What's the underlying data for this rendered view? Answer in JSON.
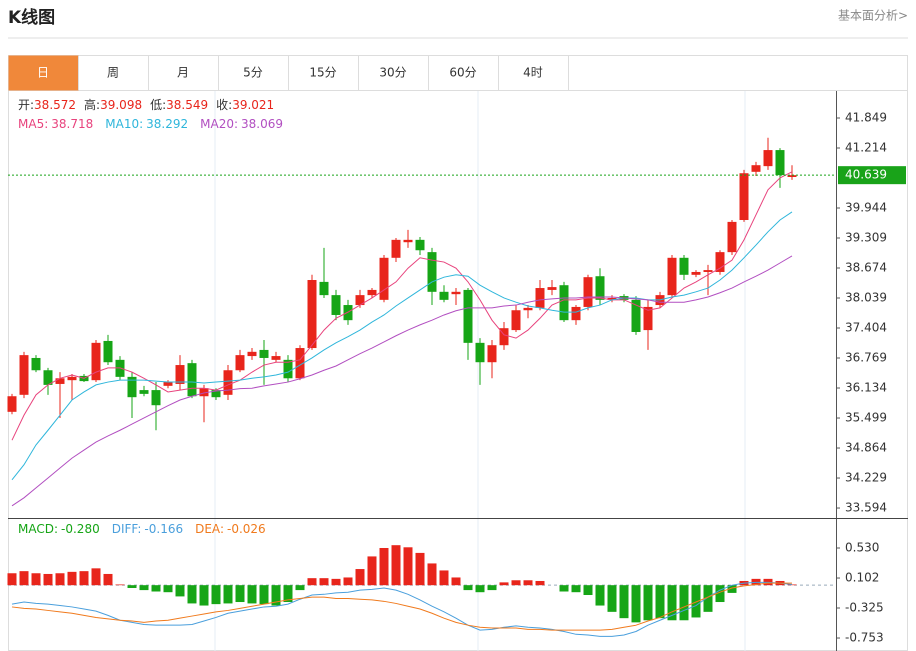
{
  "header": {
    "title": "K线图",
    "link": "基本面分析>"
  },
  "tabs": [
    "日",
    "周",
    "月",
    "5分",
    "15分",
    "30分",
    "60分",
    "4时"
  ],
  "active_tab": 0,
  "chart_data": [
    {
      "type": "candlestick",
      "ohlc_legend": [
        {
          "label": "开:",
          "value": 38.572
        },
        {
          "label": "高:",
          "value": 39.098
        },
        {
          "label": "低:",
          "value": 38.549
        },
        {
          "label": "收:",
          "value": 39.021
        }
      ],
      "ohlc_legend_color": "#e8251b",
      "legend_separator": ":",
      "legend_values": [
        38.718,
        38.292,
        38.069
      ],
      "up_color": "#e8251b",
      "down_color": "#16a516",
      "open": [
        35.63,
        35.99,
        36.77,
        36.51,
        36.22,
        36.3,
        36.39,
        36.3,
        37.13,
        36.73,
        36.37,
        36.09,
        36.09,
        36.18,
        36.22,
        36.66,
        35.96,
        36.09,
        35.99,
        36.51,
        36.81,
        36.94,
        36.73,
        36.73,
        36.34,
        36.98,
        38.38,
        38.1,
        37.89,
        37.89,
        38.1,
        38.0,
        38.89,
        39.22,
        39.27,
        39.01,
        38.17,
        38.12,
        38.21,
        37.09,
        36.68,
        37.04,
        37.36,
        37.78,
        37.83,
        38.21,
        38.31,
        37.57,
        37.85,
        38.5,
        38.0,
        38.08,
        38.0,
        37.36,
        37.89,
        38.1,
        38.89,
        38.53,
        38.59,
        38.59,
        39.01,
        39.69,
        40.71,
        40.83,
        41.17,
        40.6
      ],
      "high": [
        36.01,
        36.9,
        36.83,
        36.56,
        36.47,
        36.43,
        36.43,
        37.15,
        37.26,
        36.81,
        36.47,
        36.18,
        36.26,
        36.3,
        36.83,
        36.73,
        36.2,
        36.13,
        36.62,
        36.94,
        36.98,
        37.15,
        36.9,
        36.83,
        37.04,
        38.53,
        39.1,
        38.21,
        38.0,
        38.21,
        38.25,
        38.95,
        39.31,
        39.48,
        39.33,
        39.1,
        38.31,
        38.25,
        38.25,
        37.19,
        37.15,
        37.53,
        37.89,
        37.89,
        38.42,
        38.42,
        38.38,
        37.89,
        38.53,
        38.67,
        38.1,
        38.12,
        38.08,
        38.0,
        38.17,
        38.95,
        38.95,
        38.63,
        38.74,
        39.05,
        39.69,
        40.75,
        40.92,
        41.43,
        41.21,
        40.85
      ],
      "low": [
        35.58,
        35.92,
        36.47,
        35.99,
        35.5,
        35.88,
        36.26,
        36.26,
        36.62,
        36.3,
        35.5,
        35.96,
        35.24,
        36.13,
        36.09,
        35.92,
        35.41,
        35.88,
        35.88,
        36.47,
        36.73,
        36.2,
        36.68,
        36.26,
        36.3,
        36.94,
        38.04,
        37.57,
        37.47,
        37.83,
        38.04,
        37.95,
        38.8,
        39.1,
        38.95,
        37.89,
        37.95,
        37.89,
        36.73,
        36.2,
        36.34,
        36.94,
        37.32,
        37.61,
        37.78,
        38.1,
        37.53,
        37.47,
        37.78,
        37.89,
        37.95,
        37.95,
        37.26,
        36.94,
        37.83,
        38.04,
        38.42,
        38.48,
        38.1,
        38.53,
        38.95,
        39.65,
        40.62,
        40.75,
        40.37,
        40.54
      ],
      "close": [
        35.96,
        36.83,
        36.51,
        36.2,
        36.34,
        36.37,
        36.28,
        37.09,
        36.68,
        36.37,
        35.94,
        36.01,
        35.77,
        36.26,
        36.62,
        35.96,
        36.13,
        35.94,
        36.51,
        36.83,
        36.9,
        36.77,
        36.81,
        36.34,
        36.98,
        38.42,
        38.1,
        37.68,
        37.57,
        38.1,
        38.21,
        38.89,
        39.27,
        39.27,
        39.05,
        38.17,
        38.0,
        38.17,
        37.09,
        36.68,
        37.04,
        37.4,
        37.78,
        37.83,
        38.25,
        38.27,
        37.57,
        37.85,
        38.48,
        38.0,
        38.04,
        38.0,
        37.32,
        37.85,
        38.1,
        38.89,
        38.53,
        38.59,
        38.63,
        39.01,
        39.65,
        40.68,
        40.85,
        41.17,
        40.64,
        40.639
      ],
      "series": [
        {
          "name": "MA5",
          "color": "#e8437d",
          "values": [
            35.03,
            35.56,
            35.99,
            36.2,
            36.34,
            36.41,
            36.34,
            36.47,
            36.56,
            36.56,
            36.47,
            36.34,
            36.2,
            36.05,
            36.09,
            36.13,
            36.13,
            36.09,
            36.2,
            36.3,
            36.47,
            36.62,
            36.68,
            36.68,
            36.73,
            37.04,
            37.36,
            37.61,
            37.74,
            37.89,
            38.04,
            38.21,
            38.38,
            38.67,
            38.89,
            38.84,
            38.8,
            38.67,
            38.38,
            38.0,
            37.57,
            37.26,
            37.19,
            37.36,
            37.61,
            37.89,
            38.0,
            38.0,
            38.04,
            38.04,
            38.0,
            38.0,
            37.89,
            37.78,
            37.83,
            38.04,
            38.25,
            38.38,
            38.53,
            38.67,
            38.84,
            39.27,
            39.8,
            40.33,
            40.58,
            40.71
          ]
        },
        {
          "name": "MA10",
          "color": "#2fb6db",
          "values": [
            34.19,
            34.51,
            34.93,
            35.24,
            35.56,
            35.88,
            36.05,
            36.2,
            36.26,
            36.3,
            36.3,
            36.3,
            36.28,
            36.26,
            36.26,
            36.26,
            36.24,
            36.26,
            36.28,
            36.3,
            36.34,
            36.37,
            36.41,
            36.47,
            36.62,
            36.77,
            36.94,
            37.09,
            37.22,
            37.36,
            37.53,
            37.68,
            37.87,
            38.04,
            38.21,
            38.38,
            38.48,
            38.53,
            38.5,
            38.31,
            38.17,
            38.04,
            37.95,
            37.87,
            37.83,
            37.78,
            37.74,
            37.74,
            37.83,
            37.89,
            38.0,
            38.04,
            38.04,
            38.0,
            38.0,
            38.06,
            38.1,
            38.17,
            38.25,
            38.42,
            38.63,
            38.89,
            39.16,
            39.44,
            39.69,
            39.86
          ]
        },
        {
          "name": "MA20",
          "color": "#b24fc1",
          "values": [
            33.64,
            33.81,
            34.02,
            34.23,
            34.44,
            34.65,
            34.82,
            34.99,
            35.12,
            35.24,
            35.37,
            35.5,
            35.63,
            35.76,
            35.88,
            35.96,
            36.03,
            36.07,
            36.09,
            36.12,
            36.13,
            36.18,
            36.22,
            36.26,
            36.33,
            36.41,
            36.51,
            36.6,
            36.73,
            36.86,
            36.98,
            37.11,
            37.24,
            37.36,
            37.47,
            37.57,
            37.68,
            37.77,
            37.83,
            37.83,
            37.83,
            37.87,
            37.89,
            37.95,
            38.0,
            38.02,
            38.04,
            38.04,
            38.06,
            38.06,
            38.06,
            38.04,
            38.02,
            38.0,
            37.95,
            37.95,
            37.95,
            38.0,
            38.06,
            38.15,
            38.25,
            38.38,
            38.5,
            38.63,
            38.78,
            38.93
          ]
        }
      ],
      "last_price": 40.639,
      "last_price_color": "#19a319",
      "ylim": [
        33.404,
        42.378
      ],
      "yticks": [
        41.849,
        41.214,
        39.944,
        39.309,
        38.674,
        38.039,
        37.404,
        36.769,
        36.134,
        35.499,
        34.864,
        34.229,
        33.594
      ]
    },
    {
      "type": "macd",
      "legend_separator": ":",
      "legend_values": [
        {
          "value": -0.28,
          "label": "-0.280"
        },
        -0.166,
        -0.026
      ],
      "histogram": {
        "name": "MACD",
        "color": "#16a516",
        "up_color": "#e8251b",
        "down_color": "#16a516",
        "values": [
          0.17,
          0.2,
          0.17,
          0.16,
          0.17,
          0.19,
          0.2,
          0.24,
          0.16,
          0.01,
          -0.04,
          -0.07,
          -0.09,
          -0.1,
          -0.16,
          -0.26,
          -0.29,
          -0.27,
          -0.26,
          -0.24,
          -0.26,
          -0.27,
          -0.29,
          -0.24,
          -0.07,
          0.1,
          0.1,
          0.09,
          0.11,
          0.23,
          0.41,
          0.53,
          0.57,
          0.54,
          0.46,
          0.31,
          0.21,
          0.11,
          -0.07,
          -0.1,
          -0.07,
          0.04,
          0.07,
          0.07,
          0.06,
          0.0,
          -0.09,
          -0.1,
          -0.14,
          -0.29,
          -0.38,
          -0.47,
          -0.53,
          -0.5,
          -0.47,
          -0.5,
          -0.5,
          -0.46,
          -0.38,
          -0.24,
          -0.11,
          0.06,
          0.09,
          0.09,
          0.06,
          0.01
        ]
      },
      "series": [
        {
          "name": "DIFF",
          "color": "#4a9fdc",
          "values": [
            -0.27,
            -0.24,
            -0.26,
            -0.27,
            -0.29,
            -0.31,
            -0.34,
            -0.37,
            -0.43,
            -0.5,
            -0.53,
            -0.56,
            -0.57,
            -0.57,
            -0.57,
            -0.56,
            -0.51,
            -0.46,
            -0.4,
            -0.37,
            -0.34,
            -0.31,
            -0.3,
            -0.27,
            -0.2,
            -0.14,
            -0.13,
            -0.11,
            -0.1,
            -0.07,
            -0.06,
            -0.04,
            -0.07,
            -0.13,
            -0.21,
            -0.3,
            -0.38,
            -0.47,
            -0.57,
            -0.64,
            -0.63,
            -0.6,
            -0.58,
            -0.6,
            -0.61,
            -0.63,
            -0.66,
            -0.7,
            -0.71,
            -0.73,
            -0.73,
            -0.71,
            -0.66,
            -0.57,
            -0.5,
            -0.43,
            -0.36,
            -0.29,
            -0.17,
            -0.07,
            0.0,
            0.03,
            0.04,
            0.04,
            0.03,
            0.01
          ]
        },
        {
          "name": "DEA",
          "color": "#f07a1d",
          "values": [
            -0.31,
            -0.33,
            -0.34,
            -0.36,
            -0.38,
            -0.4,
            -0.43,
            -0.46,
            -0.48,
            -0.5,
            -0.51,
            -0.53,
            -0.51,
            -0.5,
            -0.47,
            -0.44,
            -0.41,
            -0.38,
            -0.36,
            -0.33,
            -0.3,
            -0.27,
            -0.24,
            -0.21,
            -0.19,
            -0.17,
            -0.17,
            -0.19,
            -0.19,
            -0.2,
            -0.21,
            -0.23,
            -0.26,
            -0.3,
            -0.34,
            -0.4,
            -0.47,
            -0.53,
            -0.57,
            -0.6,
            -0.61,
            -0.61,
            -0.61,
            -0.63,
            -0.63,
            -0.64,
            -0.64,
            -0.64,
            -0.64,
            -0.64,
            -0.63,
            -0.6,
            -0.57,
            -0.51,
            -0.46,
            -0.38,
            -0.31,
            -0.24,
            -0.17,
            -0.1,
            -0.04,
            -0.01,
            0.01,
            0.03,
            0.03,
            0.03
          ]
        }
      ],
      "ylim": [
        -0.938,
        0.929
      ],
      "yticks": [
        {
          "value": 0.53,
          "label": "0.530"
        },
        0.102,
        -0.325,
        -0.753
      ]
    }
  ]
}
